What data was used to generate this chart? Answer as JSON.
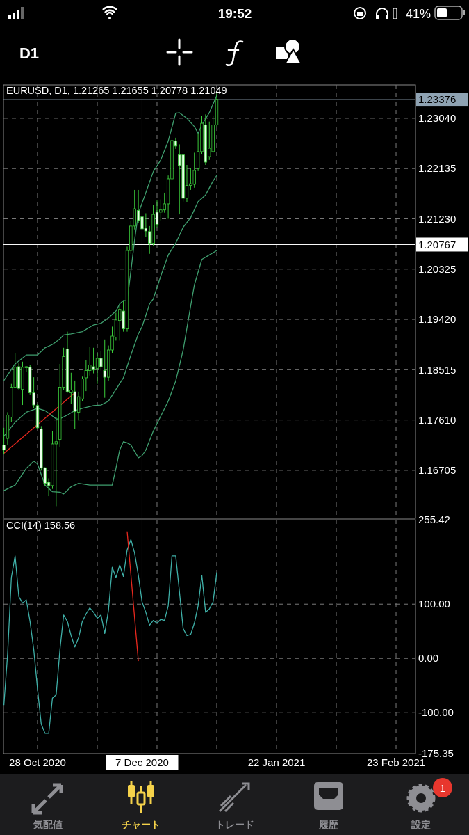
{
  "chart_data": [
    {
      "type": "candlestick",
      "title": "EURUSD, D1, 1.21265 1.21655 1.20778 1.21049",
      "annotations": [
        "D1",
        "19:52",
        "41%",
        "気配値",
        "チャート",
        "トレード",
        "履歴",
        "設定",
        "1"
      ],
      "categories": [
        null,
        null,
        null,
        null,
        null,
        null,
        null,
        null,
        null,
        "28 Oct 2020",
        null,
        null,
        null,
        null,
        null,
        null,
        null,
        null,
        null,
        null,
        null,
        null,
        null,
        null,
        null,
        null,
        null,
        null,
        null,
        null,
        null,
        null,
        null,
        null,
        null,
        null,
        null,
        "7 Dec 2020",
        null,
        null,
        null,
        null,
        null,
        null,
        null,
        null,
        null,
        null,
        null,
        null,
        null,
        null,
        null,
        null,
        null,
        null,
        null,
        null,
        null,
        null,
        null,
        null,
        null,
        null,
        null,
        null,
        null,
        null,
        null,
        null,
        null,
        null,
        null,
        "22 Jan 2021",
        null,
        null,
        null,
        null,
        null,
        null,
        null,
        null,
        null,
        null,
        null,
        null,
        null,
        null,
        null,
        null,
        null,
        null,
        null,
        null,
        null,
        null,
        null,
        null,
        null,
        null,
        null,
        null,
        null,
        null,
        null,
        "23 Feb 2021",
        null,
        null,
        null,
        null,
        null
      ],
      "ylim": [
        1.1584,
        1.2364
      ],
      "yticks": [
        {
          "value": 1.16705,
          "label": "1.16705"
        },
        {
          "value": 1.1761,
          "label": "1.17610"
        },
        {
          "value": 1.18515,
          "label": "1.18515"
        },
        {
          "value": 1.1942,
          "label": "1.19420"
        },
        {
          "value": 1.20325,
          "label": "1.20325"
        },
        {
          "value": 1.2123,
          "label": "1.21230"
        },
        {
          "value": 1.22135,
          "label": "1.22135"
        },
        {
          "value": 1.2304,
          "label": "1.23040"
        }
      ],
      "tick_labels": "y",
      "grid": true,
      "ref_lines": [
        {
          "axis": "y",
          "value": 1.23376,
          "label": "1.23376",
          "color": "#8fa3b3"
        },
        {
          "axis": "y",
          "value": 1.20767,
          "label": "1.20767",
          "color": "#ffffff"
        },
        {
          "axis": "x",
          "value": "7 Dec 2020",
          "color": "#ffffff"
        }
      ],
      "series": [
        {
          "color": "#3ccf3c",
          "ohlc": [
            [
              1.1716,
              1.1747,
              1.1699,
              1.1707
            ],
            [
              1.1728,
              1.1775,
              1.1716,
              1.177
            ],
            [
              1.1766,
              1.1826,
              1.1757,
              1.182
            ],
            [
              1.182,
              1.1881,
              1.1819,
              1.1856
            ],
            [
              1.1857,
              1.1863,
              1.1816,
              1.1818
            ],
            [
              1.1816,
              1.1866,
              1.1788,
              1.1856
            ],
            [
              1.1855,
              1.1858,
              1.1848,
              1.1857
            ],
            [
              1.1856,
              1.186,
              1.1807,
              1.181
            ],
            [
              1.181,
              1.1838,
              1.1782,
              1.1788
            ],
            [
              1.1787,
              1.179,
              1.1745,
              1.1747
            ],
            [
              1.1745,
              1.175,
              1.167,
              1.1675
            ],
            [
              1.1675,
              1.1676,
              1.1643,
              1.1647
            ],
            [
              1.1649,
              1.1656,
              1.1624,
              1.1643
            ],
            [
              1.1643,
              1.1741,
              1.1637,
              1.1718
            ],
            [
              1.1718,
              1.1766,
              1.1606,
              1.1722
            ],
            [
              1.1726,
              1.1862,
              1.1713,
              1.182
            ],
            [
              1.182,
              1.1891,
              1.1815,
              1.1875
            ],
            [
              1.1889,
              1.192,
              1.181,
              1.1812
            ],
            [
              1.181,
              1.1846,
              1.179,
              1.1815
            ],
            [
              1.1812,
              1.1832,
              1.1745,
              1.1776
            ],
            [
              1.1775,
              1.1812,
              1.176,
              1.1803
            ],
            [
              1.1799,
              1.1839,
              1.1795,
              1.1835
            ],
            [
              1.1837,
              1.1869,
              1.1813,
              1.185
            ],
            [
              1.185,
              1.1893,
              1.1841,
              1.186
            ],
            [
              1.1857,
              1.1891,
              1.1845,
              1.1851
            ],
            [
              1.1854,
              1.1881,
              1.1826,
              1.1872
            ],
            [
              1.1872,
              1.1885,
              1.185,
              1.1857
            ],
            [
              1.185,
              1.1906,
              1.1801,
              1.1838
            ],
            [
              1.1838,
              1.1895,
              1.1832,
              1.1887
            ],
            [
              1.1887,
              1.1929,
              1.1882,
              1.1912
            ],
            [
              1.191,
              1.1954,
              1.1904,
              1.1941
            ],
            [
              1.194,
              1.1966,
              1.1904,
              1.196
            ],
            [
              1.1957,
              1.1975,
              1.192,
              1.1925
            ],
            [
              1.1925,
              1.2073,
              1.192,
              1.2066
            ],
            [
              1.2066,
              1.2119,
              1.206,
              1.211
            ],
            [
              1.211,
              1.2175,
              1.2104,
              1.2141
            ],
            [
              1.2138,
              1.2175,
              1.2116,
              1.212
            ],
            [
              1.21265,
              1.21655,
              1.20778,
              1.21049
            ],
            [
              1.2106,
              1.2133,
              1.2091,
              1.2101
            ],
            [
              1.21,
              1.211,
              1.206,
              1.2079
            ],
            [
              1.2079,
              1.2148,
              1.2075,
              1.2131
            ],
            [
              1.2135,
              1.2156,
              1.2108,
              1.2113
            ],
            [
              1.2135,
              1.2158,
              1.212,
              1.2139
            ],
            [
              1.2139,
              1.217,
              1.2134,
              1.215
            ],
            [
              1.215,
              1.2201,
              1.2123,
              1.2195
            ],
            [
              1.2195,
              1.227,
              1.219,
              1.2264
            ],
            [
              1.2263,
              1.2269,
              1.2249,
              1.2254
            ],
            [
              1.2238,
              1.2257,
              1.2131,
              1.2219
            ],
            [
              1.2238,
              1.224,
              1.2154,
              1.216
            ],
            [
              1.216,
              1.222,
              1.2153,
              1.2183
            ],
            [
              1.2183,
              1.2214,
              1.2175,
              1.2186
            ],
            [
              1.2185,
              1.2242,
              1.2179,
              1.221
            ],
            [
              1.2213,
              1.2277,
              1.2209,
              1.2244
            ],
            [
              1.2244,
              1.2308,
              1.2239,
              1.2295
            ],
            [
              1.2292,
              1.2311,
              1.222,
              1.2225
            ],
            [
              1.2235,
              1.2298,
              1.2229,
              1.225
            ],
            [
              1.2244,
              1.2308,
              1.2242,
              1.2292
            ],
            [
              1.2292,
              1.2349,
              1.2288,
              1.2338
            ],
            null,
            null,
            null,
            null,
            null,
            null,
            null,
            null,
            null,
            null,
            null,
            null,
            null,
            null,
            null,
            null,
            null,
            null,
            null,
            null,
            null,
            null,
            null,
            null,
            null,
            null,
            null,
            null,
            null,
            null,
            null,
            null,
            null,
            null,
            null,
            null,
            null,
            null,
            null,
            null,
            null,
            null,
            null,
            null,
            null,
            null,
            null,
            null,
            null,
            null,
            null,
            null,
            null
          ]
        },
        {
          "type": "line",
          "color": "#3f9f6f",
          "values": [
            1.1832,
            null,
            null,
            1.1862,
            null,
            null,
            1.1878,
            null,
            null,
            1.1878,
            null,
            1.1891,
            null,
            1.1897,
            null,
            1.1907,
            1.1914,
            null,
            1.1916,
            null,
            null,
            1.192,
            null,
            null,
            1.1932,
            null,
            1.1935,
            null,
            1.1945,
            null,
            1.1957,
            1.197,
            1.1976,
            1.1975,
            1.2029,
            1.2085,
            1.2133,
            null,
            1.217,
            null,
            1.2208,
            null,
            1.2229,
            null,
            1.2263,
            null,
            1.2313,
            1.2314,
            null,
            1.2304,
            null,
            1.2289,
            1.2277,
            1.2292,
            null,
            1.2314,
            null,
            1.2345,
            null,
            null,
            null,
            null,
            null,
            null,
            null,
            null,
            null,
            null,
            null,
            null,
            null,
            null,
            null,
            null,
            null,
            null,
            null,
            null,
            null,
            null,
            null,
            null,
            null,
            null,
            null,
            null,
            null,
            null,
            null,
            null,
            null,
            null,
            null,
            null,
            null,
            null,
            null,
            null,
            null,
            null,
            null,
            null,
            null,
            null,
            null,
            null,
            null,
            null,
            null,
            null,
            null
          ]
        },
        {
          "type": "line",
          "color": "#3f9f6f",
          "values": [
            1.1732,
            null,
            null,
            1.1757,
            null,
            null,
            1.1775,
            null,
            null,
            1.1782,
            null,
            1.1778,
            null,
            1.1768,
            1.1763,
            1.1763,
            null,
            1.177,
            null,
            1.1778,
            null,
            1.1782,
            null,
            null,
            1.1787,
            null,
            1.1788,
            null,
            1.1795,
            null,
            1.1816,
            null,
            1.1837,
            null,
            1.1878,
            null,
            1.1916,
            1.1929,
            null,
            1.197,
            1.1979,
            null,
            1.202,
            null,
            1.2058,
            null,
            1.2079,
            null,
            1.2108,
            null,
            1.2125,
            null,
            1.2154,
            null,
            1.2166,
            null,
            1.2191,
            1.2201,
            null,
            null,
            null,
            null,
            null,
            null,
            null,
            null,
            null,
            null,
            null,
            null,
            null,
            null,
            null,
            null,
            null,
            null,
            null,
            null,
            null,
            null,
            null,
            null,
            null,
            null,
            null,
            null,
            null,
            null,
            null,
            null,
            null,
            null,
            null,
            null,
            null,
            null,
            null,
            null,
            null,
            null,
            null,
            null,
            null,
            null,
            null,
            null,
            null,
            null,
            null,
            null,
            null
          ]
        },
        {
          "type": "line",
          "color": "#3f9f6f",
          "values": [
            1.1634,
            null,
            null,
            1.1644,
            null,
            null,
            1.1674,
            null,
            1.1687,
            1.1682,
            null,
            1.1644,
            null,
            1.1632,
            null,
            1.1631,
            1.1628,
            null,
            1.1641,
            null,
            1.1647,
            null,
            null,
            1.1644,
            null,
            null,
            1.1644,
            null,
            null,
            1.1644,
            1.1674,
            1.1707,
            1.1722,
            1.172,
            1.1716,
            null,
            1.1693,
            1.1697,
            1.1707,
            null,
            1.1741,
            null,
            1.1768,
            null,
            1.1795,
            null,
            1.1831,
            null,
            1.1887,
            null,
            1.1966,
            1.2004,
            null,
            1.205,
            null,
            1.2058,
            null,
            1.2066,
            null,
            null,
            null,
            null,
            null,
            null,
            null,
            null,
            null,
            null,
            null,
            null,
            null,
            null,
            null,
            null,
            null,
            null,
            null,
            null,
            null,
            null,
            null,
            null,
            null,
            null,
            null,
            null,
            null,
            null,
            null,
            null,
            null,
            null,
            null,
            null,
            null,
            null,
            null,
            null,
            null,
            null,
            null,
            null,
            null,
            null,
            null,
            null,
            null,
            null,
            null,
            null,
            null
          ]
        },
        {
          "type": "line",
          "color": "#e8281e",
          "values": [
            1.1701,
            null,
            null,
            null,
            null,
            null,
            null,
            null,
            null,
            null,
            null,
            null,
            null,
            null,
            null,
            null,
            null,
            null,
            null,
            1.181,
            null,
            null,
            null,
            null,
            null,
            null,
            null,
            null,
            null,
            null,
            null,
            null,
            null,
            null,
            null,
            null,
            null,
            null,
            null,
            null,
            null,
            null,
            null,
            null,
            null,
            null,
            null,
            null,
            null,
            null,
            null,
            null,
            null,
            null,
            null,
            null,
            null,
            null,
            null,
            null,
            null,
            null,
            null,
            null,
            null,
            null,
            null,
            null,
            null,
            null,
            null,
            null,
            null,
            null,
            null,
            null,
            null,
            null,
            null,
            null,
            null,
            null,
            null,
            null,
            null,
            null,
            null,
            null,
            null,
            null,
            null,
            null,
            null,
            null,
            null,
            null,
            null,
            null,
            null,
            null,
            null,
            null,
            null,
            null,
            null,
            null,
            null,
            null,
            null,
            null,
            null
          ]
        }
      ]
    },
    {
      "type": "line",
      "title": "CCI(14) 158.56",
      "categories": [
        null,
        null,
        null,
        null,
        null,
        null,
        null,
        null,
        null,
        "28 Oct 2020",
        null,
        null,
        null,
        null,
        null,
        null,
        null,
        null,
        null,
        null,
        null,
        null,
        null,
        null,
        null,
        null,
        null,
        null,
        null,
        null,
        null,
        null,
        null,
        null,
        null,
        null,
        null,
        "7 Dec 2020",
        null,
        null,
        null,
        null,
        null,
        null,
        null,
        null,
        null,
        null,
        null,
        null,
        null,
        null,
        null,
        null,
        null,
        null,
        null,
        null,
        null,
        null,
        null,
        null,
        null,
        null,
        null,
        null,
        null,
        null,
        null,
        null,
        null,
        null,
        null,
        "22 Jan 2021",
        null,
        null,
        null,
        null,
        null,
        null,
        null,
        null,
        null,
        null,
        null,
        null,
        null,
        null,
        null,
        null,
        null,
        null,
        null,
        null,
        null,
        null,
        null,
        null,
        null,
        null,
        null,
        null,
        null,
        null,
        null,
        "23 Feb 2021",
        null,
        null,
        null,
        null,
        null
      ],
      "ylim": [
        -175.35,
        255.42
      ],
      "yticks": [
        {
          "value": -175.35,
          "label": "-175.35"
        },
        {
          "value": -100,
          "label": "-100.00"
        },
        {
          "value": 0,
          "label": "0.00"
        },
        {
          "value": 100,
          "label": "100.00"
        },
        {
          "value": 255.42,
          "label": "255.42"
        }
      ],
      "grid": true,
      "ref_lines": [
        {
          "axis": "x",
          "value": "7 Dec 2020",
          "color": "#ffffff"
        }
      ],
      "series": [
        {
          "color": "#3fb0a8",
          "values": [
            -86,
            8,
            149,
            189,
            114,
            102,
            108,
            68,
            16,
            -56,
            -121,
            -138,
            -138,
            -73,
            -67,
            16,
            80,
            68,
            42,
            21,
            38,
            68,
            82,
            93,
            85,
            74,
            80,
            46,
            89,
            168,
            149,
            172,
            151,
            200,
            219,
            194,
            153,
            104,
            85,
            61,
            70,
            65,
            72,
            70,
            97,
            189,
            189,
            123,
            55,
            42,
            44,
            65,
            97,
            153,
            85,
            91,
            104,
            158.56,
            null,
            null,
            null,
            null,
            null,
            null,
            null,
            null,
            null,
            null,
            null,
            null,
            null,
            null,
            null,
            null,
            null,
            null,
            null,
            null,
            null,
            null,
            null,
            null,
            null,
            null,
            null,
            null,
            null,
            null,
            null,
            null,
            null,
            null,
            null,
            null,
            null,
            null,
            null,
            null,
            null,
            null,
            null,
            null,
            null,
            null,
            null,
            null,
            null,
            null,
            null,
            null,
            null
          ]
        },
        {
          "color": "#e8281e",
          "values": [
            null,
            null,
            null,
            null,
            null,
            null,
            null,
            null,
            null,
            null,
            null,
            null,
            null,
            null,
            null,
            null,
            null,
            null,
            null,
            null,
            null,
            null,
            null,
            null,
            null,
            null,
            null,
            null,
            null,
            null,
            null,
            null,
            null,
            234,
            null,
            null,
            -5,
            null,
            null,
            null,
            null,
            null,
            null,
            null,
            null,
            null,
            null,
            null,
            null,
            null,
            null,
            null,
            null,
            null,
            null,
            null,
            null,
            null,
            null,
            null,
            null,
            null,
            null,
            null,
            null,
            null,
            null,
            null,
            null,
            null,
            null,
            null,
            null,
            null,
            null,
            null,
            null,
            null,
            null,
            null,
            null,
            null,
            null,
            null,
            null,
            null,
            null,
            null,
            null,
            null,
            null,
            null,
            null,
            null,
            null,
            null,
            null,
            null,
            null,
            null,
            null,
            null,
            null,
            null,
            null,
            null,
            null,
            null,
            null,
            null,
            null
          ]
        }
      ]
    }
  ]
}
